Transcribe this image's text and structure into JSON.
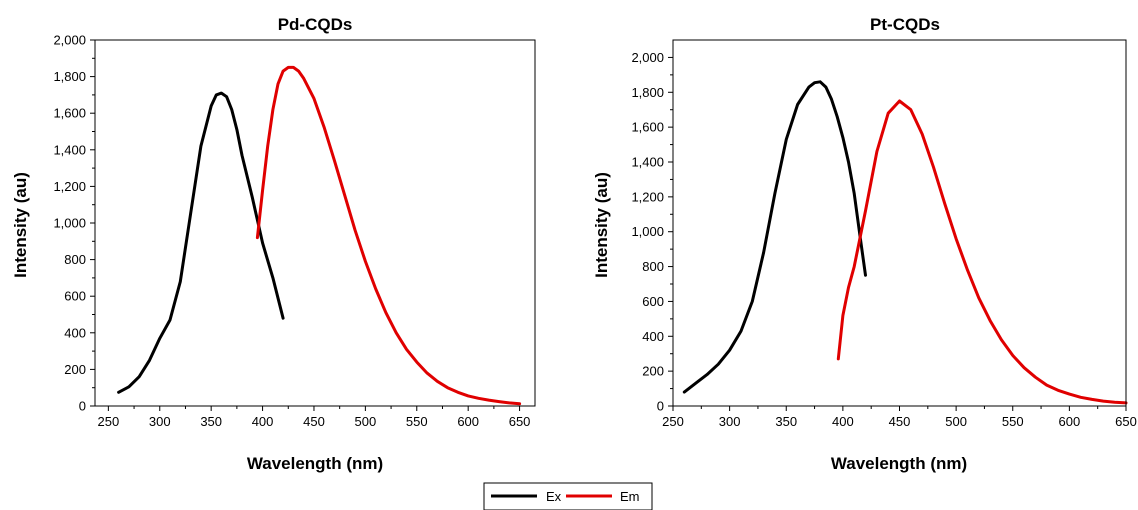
{
  "chart_data": [
    {
      "type": "line",
      "title": "Pd-CQDs",
      "xlabel": "Wavelength (nm)",
      "ylabel": "Intensity (au)",
      "xlim": [
        237,
        665
      ],
      "ylim": [
        0,
        2000
      ],
      "x_ticks": [
        250,
        300,
        350,
        400,
        450,
        500,
        550,
        600,
        650
      ],
      "y_ticks": [
        0,
        200,
        400,
        600,
        800,
        1000,
        1200,
        1400,
        1600,
        1800,
        2000
      ],
      "x_tick_labels": [
        "250",
        "300",
        "350",
        "400",
        "450",
        "500",
        "550",
        "600",
        "650"
      ],
      "y_tick_labels": [
        "0",
        "200",
        "400",
        "600",
        "800",
        "1,000",
        "1,200",
        "1,400",
        "1,600",
        "1,800",
        "2,000"
      ],
      "grid": false,
      "series": [
        {
          "name": "Ex",
          "color": "#000000",
          "x": [
            260,
            270,
            280,
            290,
            300,
            310,
            320,
            330,
            340,
            350,
            355,
            360,
            365,
            370,
            375,
            380,
            390,
            400,
            410,
            420
          ],
          "y": [
            75,
            105,
            160,
            250,
            370,
            470,
            680,
            1050,
            1420,
            1640,
            1700,
            1710,
            1690,
            1620,
            1510,
            1370,
            1140,
            890,
            700,
            480
          ]
        },
        {
          "name": "Em",
          "color": "#e00000",
          "x": [
            395,
            400,
            405,
            410,
            415,
            420,
            425,
            430,
            435,
            440,
            450,
            460,
            470,
            480,
            490,
            500,
            510,
            520,
            530,
            540,
            550,
            560,
            570,
            580,
            590,
            600,
            610,
            620,
            630,
            640,
            650
          ],
          "y": [
            920,
            1180,
            1420,
            1620,
            1760,
            1830,
            1850,
            1850,
            1830,
            1790,
            1680,
            1520,
            1340,
            1150,
            960,
            790,
            640,
            510,
            400,
            310,
            240,
            180,
            135,
            100,
            75,
            55,
            42,
            32,
            24,
            17,
            12
          ]
        }
      ]
    },
    {
      "type": "line",
      "title": "Pt-CQDs",
      "xlabel": "Wavelength (nm)",
      "ylabel": "Intensity (au)",
      "xlim": [
        250,
        650
      ],
      "ylim": [
        0,
        2100
      ],
      "x_ticks": [
        250,
        300,
        350,
        400,
        450,
        500,
        550,
        600,
        650
      ],
      "y_ticks": [
        0,
        200,
        400,
        600,
        800,
        1000,
        1200,
        1400,
        1600,
        1800,
        2000
      ],
      "x_tick_labels": [
        "250",
        "300",
        "350",
        "400",
        "450",
        "500",
        "550",
        "600",
        "650"
      ],
      "y_tick_labels": [
        "0",
        "200",
        "400",
        "600",
        "800",
        "1,000",
        "1,200",
        "1,400",
        "1,600",
        "1,800",
        "2,000"
      ],
      "grid": false,
      "series": [
        {
          "name": "Ex",
          "color": "#000000",
          "x": [
            260,
            270,
            280,
            290,
            300,
            310,
            320,
            330,
            340,
            350,
            360,
            370,
            375,
            380,
            385,
            390,
            395,
            400,
            405,
            410,
            415,
            420
          ],
          "y": [
            80,
            130,
            180,
            240,
            320,
            430,
            600,
            880,
            1220,
            1530,
            1730,
            1830,
            1855,
            1860,
            1830,
            1760,
            1660,
            1540,
            1400,
            1220,
            980,
            750
          ]
        },
        {
          "name": "Em",
          "color": "#e00000",
          "x": [
            396,
            400,
            405,
            410,
            420,
            430,
            440,
            450,
            460,
            470,
            480,
            490,
            500,
            510,
            520,
            530,
            540,
            550,
            560,
            570,
            580,
            590,
            600,
            610,
            620,
            630,
            640,
            650
          ],
          "y": [
            270,
            520,
            680,
            800,
            1120,
            1460,
            1680,
            1750,
            1700,
            1560,
            1370,
            1160,
            960,
            780,
            620,
            490,
            380,
            290,
            220,
            165,
            120,
            90,
            68,
            50,
            38,
            28,
            22,
            18
          ]
        }
      ]
    }
  ],
  "legend": {
    "items": [
      {
        "label": "Ex",
        "color": "#000000"
      },
      {
        "label": "Em",
        "color": "#e00000"
      }
    ],
    "placement": "bottom-center"
  }
}
